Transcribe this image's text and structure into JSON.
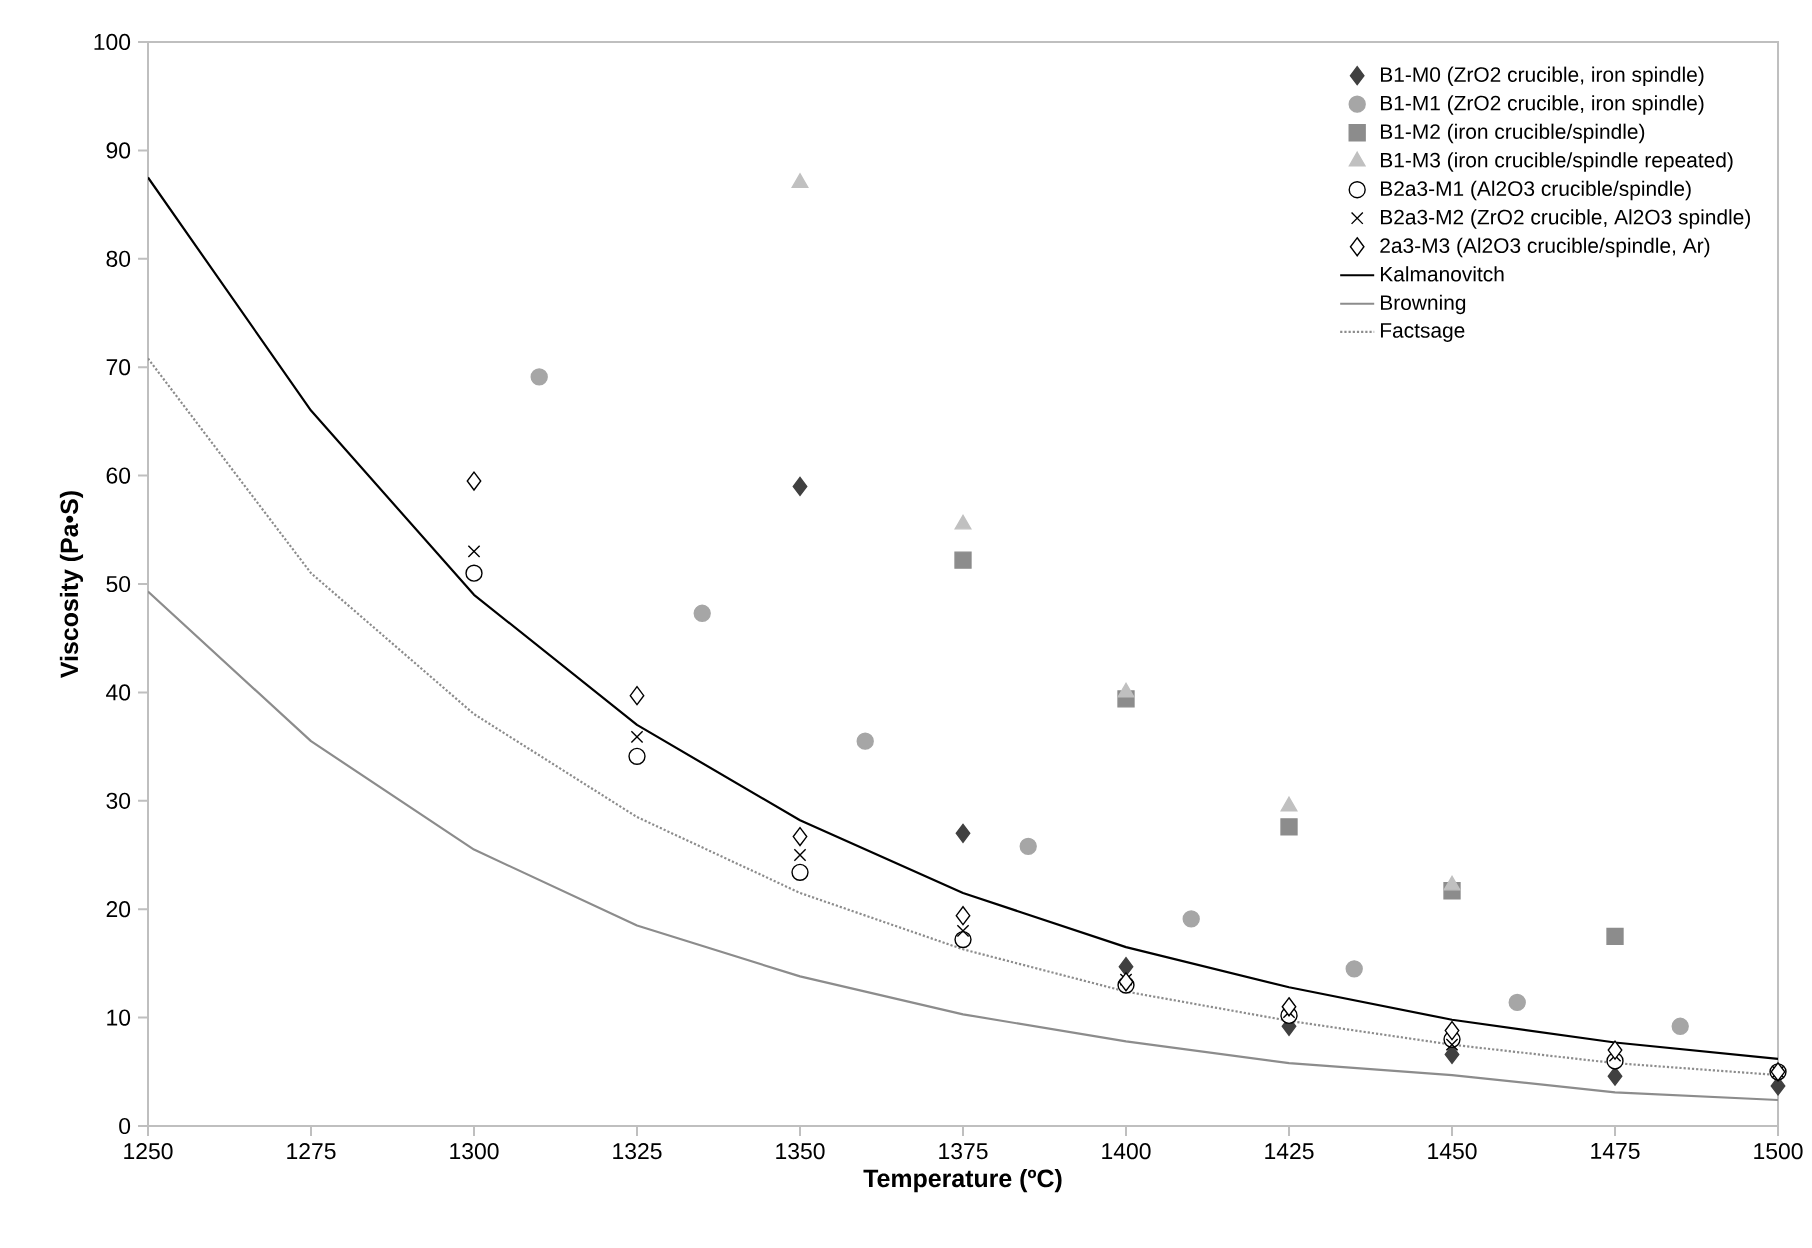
{
  "chart_data": {
    "type": "scatter",
    "xlabel": "Temperature (ºC)",
    "ylabel": "Viscosity (Pa•S)",
    "xlim": [
      1250,
      1500
    ],
    "ylim": [
      0,
      100
    ],
    "xticks": [
      1250,
      1275,
      1300,
      1325,
      1350,
      1375,
      1400,
      1425,
      1450,
      1475,
      1500
    ],
    "yticks": [
      0,
      10,
      20,
      30,
      40,
      50,
      60,
      70,
      80,
      90,
      100
    ],
    "legend": "top right",
    "series": [
      {
        "name": "B1-M0 (ZrO2 crucible, iron spindle)",
        "marker": "diamond",
        "color": "#404040",
        "x": [
          1350,
          1375,
          1400,
          1425,
          1450,
          1475,
          1500
        ],
        "values": [
          59,
          27,
          14.7,
          9.2,
          6.6,
          4.6,
          3.7
        ]
      },
      {
        "name": "B1-M1 (ZrO2 crucible, iron spindle)",
        "marker": "circle",
        "color": "#a6a6a6",
        "x": [
          1310,
          1335,
          1360,
          1385,
          1410,
          1435,
          1460,
          1485
        ],
        "values": [
          69.1,
          47.3,
          35.5,
          25.8,
          19.1,
          14.5,
          11.4,
          9.2
        ]
      },
      {
        "name": "B1-M2 (iron crucible/spindle)",
        "marker": "square",
        "color": "#8c8c8c",
        "x": [
          1375,
          1400,
          1425,
          1450,
          1475
        ],
        "values": [
          52.2,
          39.4,
          27.6,
          21.7,
          17.5
        ]
      },
      {
        "name": "B1-M3 (iron crucible/spindle repeated)",
        "marker": "triangle",
        "color": "#c0c0c0",
        "x": [
          1350,
          1375,
          1400,
          1425,
          1450
        ],
        "values": [
          87,
          55.5,
          40,
          29.5,
          22.2
        ]
      },
      {
        "name": "B2a3-M1 (Al2O3 crucible/spindle)",
        "marker": "circle",
        "color": "#000000",
        "x": [
          1300,
          1325,
          1350,
          1375,
          1400,
          1425,
          1450,
          1475,
          1500
        ],
        "values": [
          51,
          34.1,
          23.4,
          17.2,
          13,
          10.2,
          8,
          6,
          5
        ]
      },
      {
        "name": "B2a3-M2 (ZrO2 crucible, Al2O3 spindle)",
        "marker": "cross",
        "color": "#000000",
        "x": [
          1300,
          1325,
          1350,
          1375,
          1400,
          1425,
          1450,
          1475,
          1500
        ],
        "values": [
          53,
          35.9,
          25,
          18,
          13.5,
          10.5,
          7.5,
          6.5,
          5
        ]
      },
      {
        "name": "2a3-M3 (Al2O3 crucible/spindle, Ar)",
        "marker": "diamond",
        "color": "#000000",
        "x": [
          1300,
          1325,
          1350,
          1375,
          1400,
          1425,
          1450,
          1475,
          1500
        ],
        "values": [
          59.5,
          39.7,
          26.7,
          19.4,
          13.3,
          11,
          8.8,
          7,
          5
        ]
      },
      {
        "name": "Kalmanovitch",
        "type": "line",
        "line_style": "solid",
        "color": "#000000",
        "x": [
          1250,
          1275,
          1300,
          1325,
          1350,
          1375,
          1400,
          1425,
          1450,
          1475,
          1500
        ],
        "values": [
          87.5,
          66,
          49,
          37,
          28.2,
          21.5,
          16.5,
          12.8,
          9.8,
          7.7,
          6.2
        ]
      },
      {
        "name": "Browning",
        "type": "line",
        "line_style": "solid",
        "color": "#8c8c8c",
        "x": [
          1250,
          1275,
          1300,
          1325,
          1350,
          1375,
          1400,
          1425,
          1450,
          1475,
          1500
        ],
        "values": [
          49.3,
          35.5,
          25.5,
          18.5,
          13.8,
          10.3,
          7.8,
          5.8,
          4.7,
          3.1,
          2.4
        ]
      },
      {
        "name": "Factsage",
        "type": "line",
        "line_style": "dotted",
        "color": "#8c8c8c",
        "x": [
          1250,
          1275,
          1300,
          1325,
          1350,
          1375,
          1400,
          1425,
          1450,
          1475,
          1500
        ],
        "values": [
          70.8,
          51,
          38,
          28.5,
          21.5,
          16.3,
          12.4,
          9.7,
          7.5,
          5.8,
          4.7
        ]
      }
    ]
  }
}
